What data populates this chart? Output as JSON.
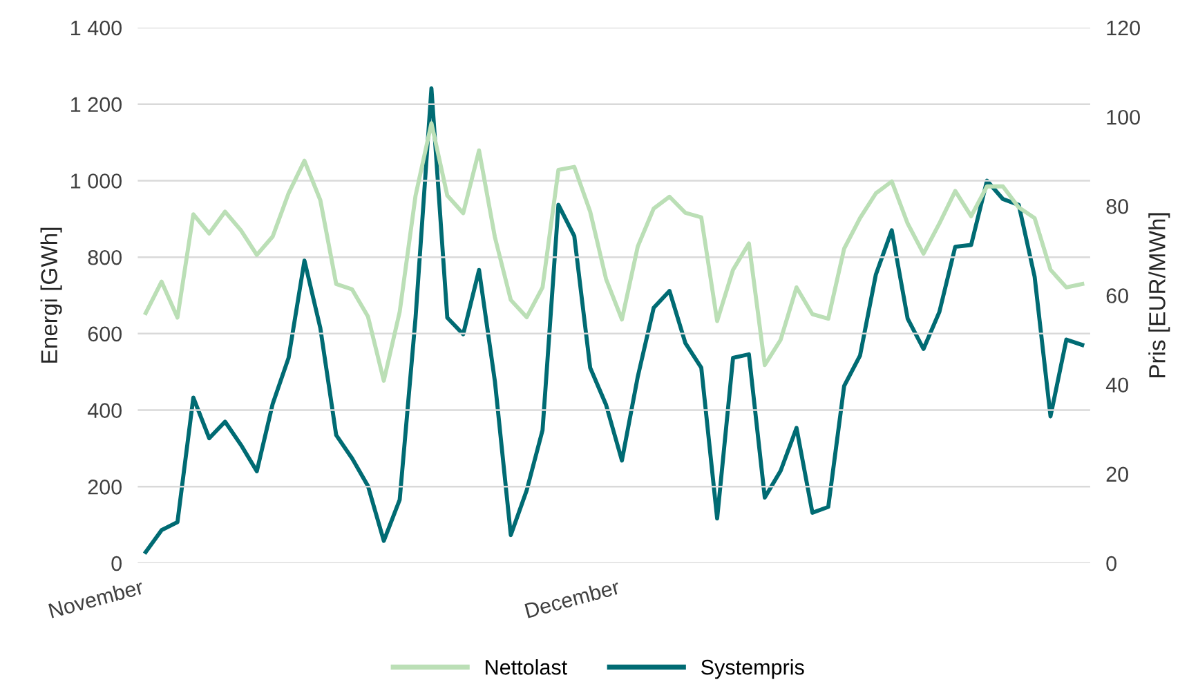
{
  "chart_data": {
    "type": "line",
    "categories": [
      "November",
      null,
      null,
      null,
      null,
      null,
      null,
      null,
      null,
      null,
      null,
      null,
      null,
      null,
      null,
      null,
      null,
      null,
      null,
      null,
      null,
      null,
      null,
      null,
      null,
      null,
      null,
      null,
      null,
      null,
      "December",
      null,
      null,
      null,
      null,
      null,
      null,
      null,
      null,
      null,
      null,
      null,
      null,
      null,
      null,
      null,
      null,
      null,
      null,
      null,
      null,
      null,
      null,
      null,
      null,
      null,
      null,
      null,
      null,
      null
    ],
    "ylabel": "Energi [GWh]",
    "y2label": "Pris [EUR/MWh]",
    "ylim": [
      0,
      1400
    ],
    "yticks": [
      0,
      200,
      400,
      600,
      800,
      {
        "value": 1000,
        "label": "1 000"
      },
      {
        "value": 1200,
        "label": "1 200"
      },
      {
        "value": 1400,
        "label": "1 400"
      }
    ],
    "y2lim": [
      0,
      120
    ],
    "y2ticks": [
      0,
      20,
      40,
      60,
      80,
      100,
      120
    ],
    "grid": "y",
    "legend": "bottom",
    "marker": "none",
    "line_style": "solid",
    "series": [
      {
        "name": "Nettolast",
        "color": "#bbdfb6",
        "values": [
          654,
          736,
          642,
          912,
          862,
          919,
          870,
          806,
          854,
          967,
          1052,
          949,
          730,
          716,
          645,
          477,
          657,
          961,
          1150,
          961,
          915,
          1079,
          852,
          688,
          643,
          721,
          1028,
          1036,
          919,
          743,
          637,
          828,
          927,
          958,
          916,
          904,
          633,
          767,
          836,
          518,
          584,
          721,
          651,
          639,
          822,
          902,
          967,
          998,
          888,
          809,
          888,
          973,
          907,
          985,
          985,
          930,
          902,
          767,
          721,
          730
        ]
      },
      {
        "name": "Systempris",
        "color": "#006b73",
        "axis": "y2",
        "values": [
          2.5,
          7.4,
          9.2,
          37.1,
          28,
          31.7,
          26.5,
          20.6,
          35.7,
          46,
          67.8,
          52.7,
          28.7,
          23.5,
          17.3,
          5,
          14.2,
          55,
          106.4,
          55,
          51.3,
          65.7,
          40.7,
          6.3,
          16.3,
          29.8,
          80.3,
          73.3,
          43.8,
          35.5,
          23,
          41.8,
          57.2,
          61,
          49.3,
          43.8,
          10,
          46,
          46.8,
          14.7,
          20.7,
          30.3,
          11.3,
          12.6,
          39.7,
          46.5,
          64.7,
          74.6,
          54.8,
          48,
          56.3,
          70.9,
          71.3,
          85.7,
          81.6,
          80.3,
          64.2,
          32.9,
          50.1,
          48.9
        ]
      }
    ]
  }
}
